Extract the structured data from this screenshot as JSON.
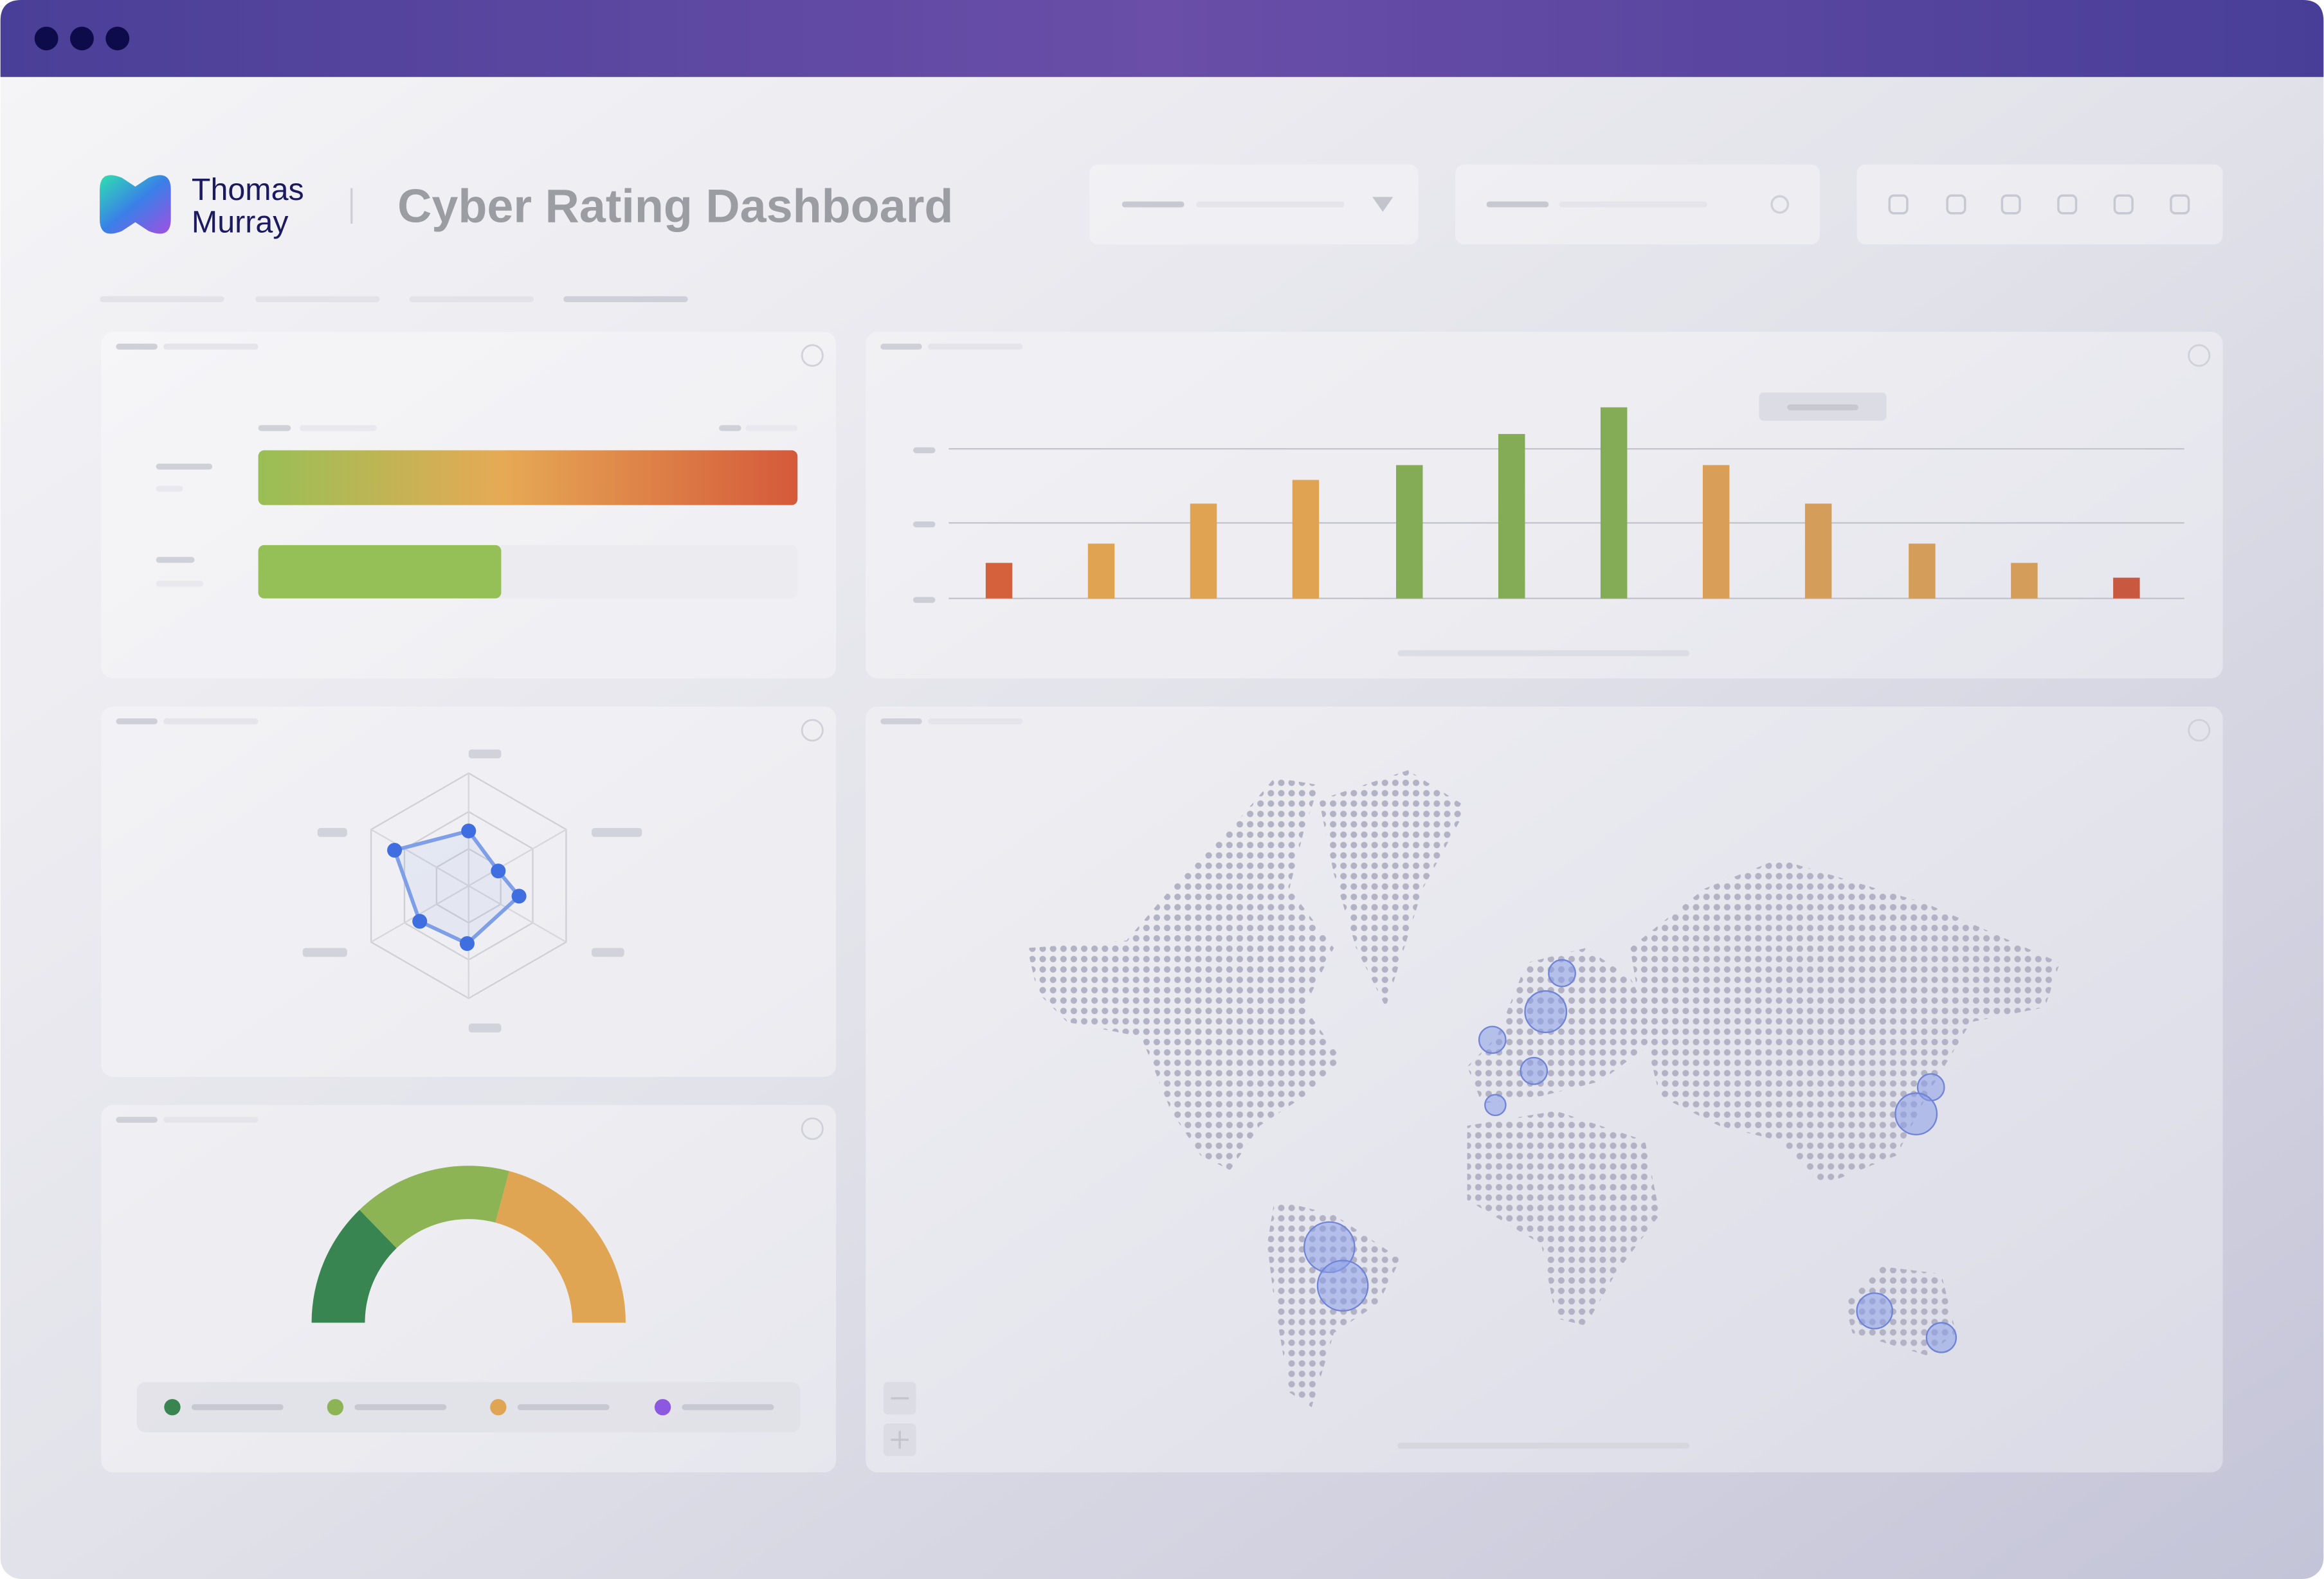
{
  "header": {
    "brand_line1": "Thomas",
    "brand_line2": "Murray",
    "title": "Cyber Rating Dashboard"
  }
}
